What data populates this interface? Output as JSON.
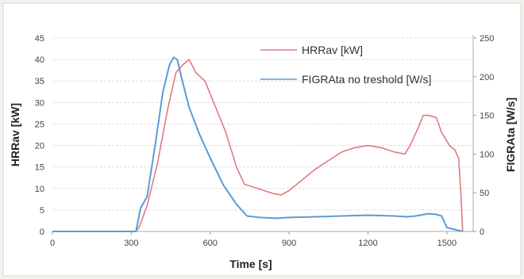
{
  "chart_data": {
    "type": "line",
    "xlabel": "Time [s]",
    "ylabel_left": "HRRav [kW]",
    "ylabel_right": "FIGRAta [W/s]",
    "x_ticks": [
      "0",
      "300",
      "600",
      "900",
      "1200",
      "1500"
    ],
    "y_left_ticks": [
      "0",
      "5",
      "10",
      "15",
      "20",
      "25",
      "30",
      "35",
      "40",
      "45"
    ],
    "y_right_ticks": [
      "0",
      "50",
      "100",
      "150",
      "200",
      "250"
    ],
    "xlim": [
      0,
      1600
    ],
    "ylim_left": [
      0,
      45
    ],
    "ylim_right": [
      0,
      250
    ],
    "grid": "horizontal",
    "legend_position": "top-right",
    "colors": {
      "hrr": "#e07a80",
      "figra": "#5b9bd5"
    },
    "series": [
      {
        "name": "HRRav [kW]",
        "axis": "left",
        "x": [
          0,
          318,
          330,
          360,
          400,
          440,
          470,
          500,
          520,
          545,
          580,
          620,
          660,
          700,
          730,
          780,
          840,
          870,
          900,
          950,
          1000,
          1050,
          1100,
          1150,
          1200,
          1250,
          1300,
          1340,
          1360,
          1390,
          1410,
          1430,
          1460,
          1480,
          1510,
          1530,
          1545,
          1552,
          1560
        ],
        "y": [
          0,
          0,
          1,
          6,
          16,
          29,
          37,
          39,
          40,
          37,
          35,
          29,
          23,
          15,
          11,
          10,
          8.8,
          8.5,
          9.5,
          12,
          14.5,
          16.5,
          18.5,
          19.5,
          20,
          19.5,
          18.5,
          18,
          20,
          24,
          27,
          27,
          26.5,
          23,
          20,
          19,
          17,
          10,
          0
        ]
      },
      {
        "name": "FIGRAta no treshold [W/s]",
        "axis": "right",
        "x": [
          0,
          318,
          335,
          360,
          390,
          420,
          445,
          460,
          475,
          490,
          520,
          560,
          600,
          650,
          700,
          740,
          790,
          850,
          900,
          1000,
          1100,
          1200,
          1300,
          1350,
          1380,
          1430,
          1460,
          1480,
          1500,
          1560
        ],
        "y": [
          0,
          0,
          30,
          45,
          110,
          180,
          215,
          225,
          222,
          200,
          160,
          125,
          95,
          60,
          35,
          20,
          18,
          17,
          18,
          19,
          20,
          21,
          20,
          19,
          20,
          23,
          22,
          20,
          5,
          0
        ]
      }
    ]
  }
}
